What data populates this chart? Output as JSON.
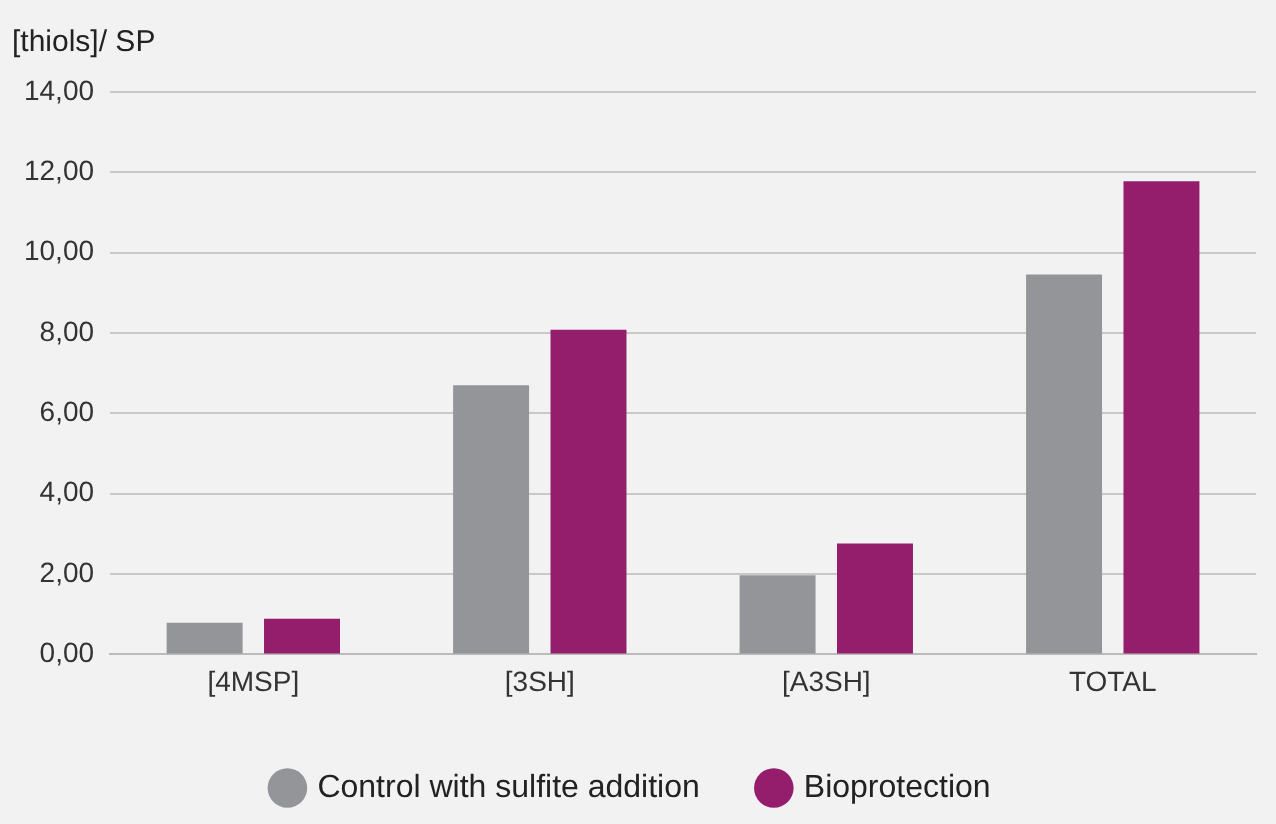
{
  "chart_data": {
    "type": "bar",
    "ylabel": "[thiols]/ SP",
    "categories": [
      "[4MSP]",
      "[3SH]",
      "[A3SH]",
      "TOTAL"
    ],
    "series": [
      {
        "name": "Control with sulfite addition",
        "color": "#939598",
        "values": [
          0.79,
          6.7,
          1.97,
          9.46
        ]
      },
      {
        "name": "Bioprotection",
        "color": "#941e6c",
        "values": [
          0.89,
          8.08,
          2.76,
          11.78
        ]
      }
    ],
    "ylim": [
      0,
      14
    ],
    "yticks": [
      {
        "value": 0,
        "label": "0,00"
      },
      {
        "value": 2,
        "label": "2,00"
      },
      {
        "value": 4,
        "label": "4,00"
      },
      {
        "value": 6,
        "label": "6,00"
      },
      {
        "value": 8,
        "label": "8,00"
      },
      {
        "value": 10,
        "label": "10,00"
      },
      {
        "value": 12,
        "label": "12,00"
      },
      {
        "value": 14,
        "label": "14,00"
      }
    ],
    "grid": "y",
    "legend": "bottom"
  }
}
